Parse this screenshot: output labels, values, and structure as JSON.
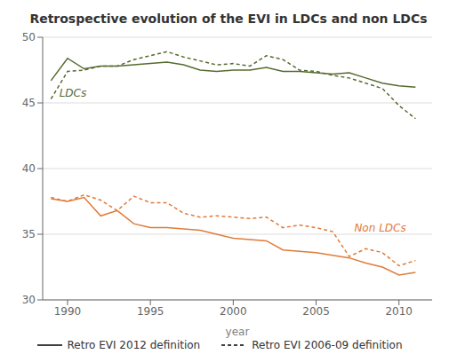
{
  "chart_data": {
    "type": "line",
    "title": "Retrospective evolution of the EVI in LDCs and non LDCs",
    "xlabel": "year",
    "x": [
      1989,
      1990,
      1991,
      1992,
      1993,
      1994,
      1995,
      1996,
      1997,
      1998,
      1999,
      2000,
      2001,
      2002,
      2003,
      2004,
      2005,
      2006,
      2007,
      2008,
      2009,
      2010,
      2011
    ],
    "series": [
      {
        "name": "Retro EVI 2012 definition",
        "color": "#556b2f",
        "line_style": "solid",
        "values": [
          46.7,
          48.4,
          47.6,
          47.8,
          47.8,
          47.9,
          48.0,
          48.1,
          47.9,
          47.5,
          47.4,
          47.5,
          47.5,
          47.7,
          47.4,
          47.4,
          47.3,
          47.2,
          47.3,
          46.9,
          46.5,
          46.3,
          46.2
        ]
      },
      {
        "name": "Retro EVI 2006-09 definition",
        "color": "#556b2f",
        "line_style": "dashed",
        "values": [
          45.3,
          47.4,
          47.5,
          47.8,
          47.8,
          48.3,
          48.6,
          48.9,
          48.5,
          48.2,
          47.9,
          48.0,
          47.8,
          48.6,
          48.3,
          47.5,
          47.4,
          47.1,
          46.9,
          46.5,
          46.1,
          44.8,
          43.8
        ]
      },
      {
        "name": "Retro EVI 2012 definition",
        "color": "#e07b39",
        "line_style": "solid",
        "values": [
          37.7,
          37.5,
          37.8,
          36.4,
          36.8,
          35.8,
          35.5,
          35.5,
          35.4,
          35.3,
          35.0,
          34.7,
          34.6,
          34.5,
          33.8,
          33.7,
          33.6,
          33.4,
          33.2,
          32.8,
          32.5,
          31.9,
          32.1
        ]
      },
      {
        "name": "Retro EVI 2006-09 definition",
        "color": "#e07b39",
        "line_style": "dashed",
        "values": [
          37.8,
          37.5,
          38.0,
          37.6,
          36.8,
          37.9,
          37.4,
          37.4,
          36.6,
          36.3,
          36.4,
          36.3,
          36.2,
          36.3,
          35.5,
          35.7,
          35.5,
          35.2,
          33.3,
          33.9,
          33.6,
          32.6,
          33.0
        ]
      }
    ],
    "annotations": [
      {
        "text": "LDCs",
        "x": 1989.5,
        "y": 45.5,
        "color": "#556b2f"
      },
      {
        "text": "Non LDCs",
        "x": 2007.3,
        "y": 35.2,
        "color": "#e07b39"
      }
    ],
    "xlim": [
      1988.5,
      2012
    ],
    "xticks": [
      1990,
      1995,
      2000,
      2005,
      2010
    ],
    "ylim": [
      30,
      50
    ],
    "yticks": [
      30,
      35,
      40,
      45,
      50
    ],
    "grid": true,
    "legend": "bottom"
  }
}
